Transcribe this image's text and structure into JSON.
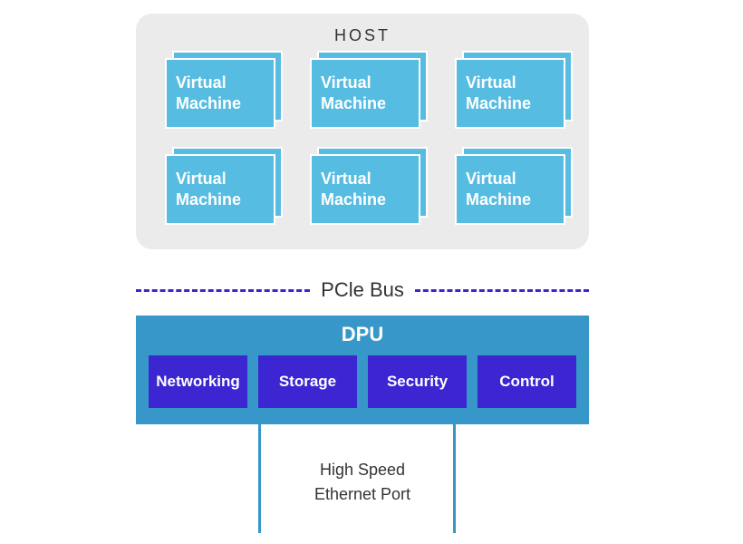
{
  "diagram": {
    "type": "infographic",
    "background_color": "#ffffff",
    "host": {
      "title": "HOST",
      "title_fontsize": 18,
      "title_letterspacing": 3,
      "container_bg": "#ebebeb",
      "container_radius": 18,
      "vm_rows": 2,
      "vm_cols": 3,
      "vm_card_bg": "#57bce1",
      "vm_card_border": "#ffffff",
      "vm_text_color": "#ffffff",
      "vm_fontsize": 18,
      "vm_line1": "Virtual",
      "vm_line2": "Machine"
    },
    "bus": {
      "label": "PCle Bus",
      "label_fontsize": 22,
      "dash_color": "#3b26d1",
      "dash_width": 3,
      "dash_style": "dashed"
    },
    "dpu": {
      "title": "DPU",
      "title_fontsize": 22,
      "container_bg": "#3697c8",
      "block_bg": "#3b26d1",
      "block_text_color": "#ffffff",
      "block_fontsize": 17,
      "blocks": [
        "Networking",
        "Storage",
        "Security",
        "Control"
      ]
    },
    "ethernet": {
      "line1": "High Speed",
      "line2": "Ethernet Port",
      "line_color": "#3697c8",
      "label_fontsize": 18
    }
  }
}
